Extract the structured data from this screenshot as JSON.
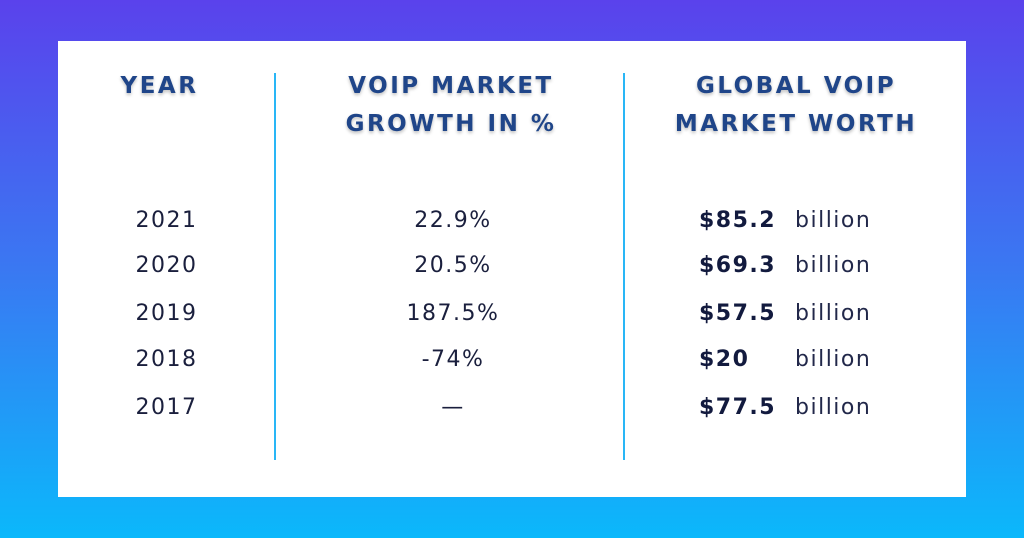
{
  "colors": {
    "background_top": "#5a42ec",
    "background_bottom": "#0bb8fb",
    "header_text": "#1f4589",
    "divider": "#29b6f6"
  },
  "chart_data": {
    "type": "table",
    "columns": [
      "YEAR",
      "VOIP MARKET GROWTH IN %",
      "GLOBAL VOIP MARKET WORTH"
    ],
    "header_lines": {
      "col0": [
        "YEAR"
      ],
      "col1": [
        "VOIP MARKET",
        "GROWTH IN %"
      ],
      "col2": [
        "GLOBAL VOIP",
        "MARKET WORTH"
      ]
    },
    "rows": [
      {
        "year": "2021",
        "growth": "22.9%",
        "worth": "$85.2",
        "unit": "billion"
      },
      {
        "year": "2020",
        "growth": "20.5%",
        "worth": "$69.3",
        "unit": "billion"
      },
      {
        "year": "2019",
        "growth": "187.5%",
        "worth": "$57.5",
        "unit": "billion"
      },
      {
        "year": "2018",
        "growth": "-74%",
        "worth": "$20",
        "unit": "billion"
      },
      {
        "year": "2017",
        "growth": "—",
        "worth": "$77.5",
        "unit": "billion"
      }
    ]
  }
}
